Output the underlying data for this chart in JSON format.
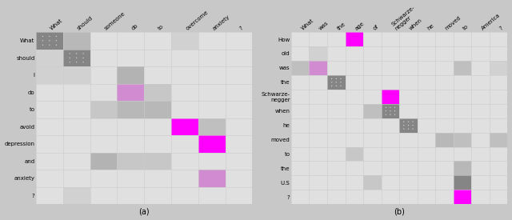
{
  "fig_width": 6.4,
  "fig_height": 2.75,
  "dpi": 100,
  "left_xlabel": [
    "What",
    "should",
    "someone",
    "do",
    "to",
    "overcome",
    "anxiety",
    "?"
  ],
  "left_ylabel": [
    "What",
    "should",
    "I",
    "do",
    "to",
    "avoid",
    "depression",
    "and",
    "anxiety",
    "?"
  ],
  "left_title": "(a)",
  "right_xlabel": [
    "What",
    "was",
    "the",
    "age",
    "of",
    "Schwarze-\nnegger",
    "when",
    "he",
    "moved",
    "to",
    "America",
    "?"
  ],
  "right_ylabel": [
    "How",
    "old",
    "was",
    "the",
    "Schwarze-\nnegger",
    "when",
    "he",
    "moved",
    "to",
    "the",
    "U.S",
    "?"
  ],
  "right_title": "(b)",
  "left_grid": [
    [
      0.55,
      0.62,
      0.78,
      0.78,
      0.78,
      0.72,
      0.78,
      0.78
    ],
    [
      0.72,
      0.6,
      0.78,
      0.78,
      0.78,
      0.78,
      0.78,
      0.78
    ],
    [
      0.72,
      0.72,
      0.78,
      0.6,
      0.78,
      0.78,
      0.78,
      0.78
    ],
    [
      0.78,
      0.78,
      0.78,
      0.46,
      0.68,
      0.78,
      0.78,
      0.78
    ],
    [
      0.78,
      0.78,
      0.68,
      0.62,
      0.62,
      0.78,
      0.78,
      0.78
    ],
    [
      0.78,
      0.78,
      0.78,
      0.78,
      0.78,
      0.2,
      0.65,
      0.78
    ],
    [
      0.78,
      0.78,
      0.78,
      0.78,
      0.78,
      0.78,
      0.2,
      0.78
    ],
    [
      0.78,
      0.78,
      0.6,
      0.68,
      0.68,
      0.78,
      0.78,
      0.78
    ],
    [
      0.78,
      0.78,
      0.78,
      0.78,
      0.78,
      0.78,
      0.55,
      0.78
    ],
    [
      0.78,
      0.72,
      0.78,
      0.78,
      0.78,
      0.78,
      0.78,
      0.78
    ]
  ],
  "left_special": [
    {
      "row": 0,
      "col": 0,
      "type": "dotted_dark"
    },
    {
      "row": 1,
      "col": 1,
      "type": "dotted_dark"
    },
    {
      "row": 3,
      "col": 3,
      "type": "magenta"
    },
    {
      "row": 5,
      "col": 5,
      "type": "bright_magenta"
    },
    {
      "row": 6,
      "col": 6,
      "type": "bright_magenta"
    },
    {
      "row": 8,
      "col": 6,
      "type": "magenta"
    }
  ],
  "right_grid": [
    [
      0.78,
      0.78,
      0.78,
      0.2,
      0.78,
      0.78,
      0.78,
      0.78,
      0.78,
      0.78,
      0.78,
      0.78
    ],
    [
      0.78,
      0.72,
      0.78,
      0.78,
      0.78,
      0.78,
      0.78,
      0.78,
      0.78,
      0.78,
      0.78,
      0.78
    ],
    [
      0.65,
      0.45,
      0.78,
      0.78,
      0.78,
      0.78,
      0.78,
      0.78,
      0.78,
      0.65,
      0.78,
      0.72
    ],
    [
      0.78,
      0.78,
      0.58,
      0.78,
      0.78,
      0.78,
      0.78,
      0.78,
      0.78,
      0.78,
      0.78,
      0.78
    ],
    [
      0.78,
      0.78,
      0.78,
      0.78,
      0.78,
      0.2,
      0.78,
      0.78,
      0.78,
      0.78,
      0.78,
      0.78
    ],
    [
      0.78,
      0.78,
      0.78,
      0.78,
      0.65,
      0.58,
      0.78,
      0.78,
      0.78,
      0.78,
      0.78,
      0.78
    ],
    [
      0.78,
      0.78,
      0.78,
      0.78,
      0.78,
      0.78,
      0.58,
      0.78,
      0.78,
      0.78,
      0.78,
      0.78
    ],
    [
      0.78,
      0.78,
      0.78,
      0.78,
      0.78,
      0.78,
      0.78,
      0.78,
      0.62,
      0.65,
      0.78,
      0.65
    ],
    [
      0.78,
      0.78,
      0.78,
      0.68,
      0.78,
      0.78,
      0.78,
      0.78,
      0.78,
      0.78,
      0.78,
      0.78
    ],
    [
      0.78,
      0.78,
      0.78,
      0.78,
      0.78,
      0.78,
      0.78,
      0.78,
      0.78,
      0.62,
      0.78,
      0.78
    ],
    [
      0.78,
      0.78,
      0.78,
      0.78,
      0.68,
      0.78,
      0.78,
      0.78,
      0.78,
      0.55,
      0.78,
      0.78
    ],
    [
      0.78,
      0.78,
      0.78,
      0.78,
      0.78,
      0.78,
      0.78,
      0.78,
      0.78,
      0.2,
      0.78,
      0.78
    ]
  ],
  "right_special": [
    {
      "row": 0,
      "col": 3,
      "type": "bright_magenta"
    },
    {
      "row": 2,
      "col": 1,
      "type": "magenta"
    },
    {
      "row": 3,
      "col": 2,
      "type": "dotted_dark"
    },
    {
      "row": 4,
      "col": 5,
      "type": "bright_magenta"
    },
    {
      "row": 5,
      "col": 5,
      "type": "dotted_dark"
    },
    {
      "row": 6,
      "col": 6,
      "type": "dotted_dark"
    },
    {
      "row": 10,
      "col": 9,
      "type": "dark"
    },
    {
      "row": 11,
      "col": 9,
      "type": "bright_magenta"
    }
  ]
}
